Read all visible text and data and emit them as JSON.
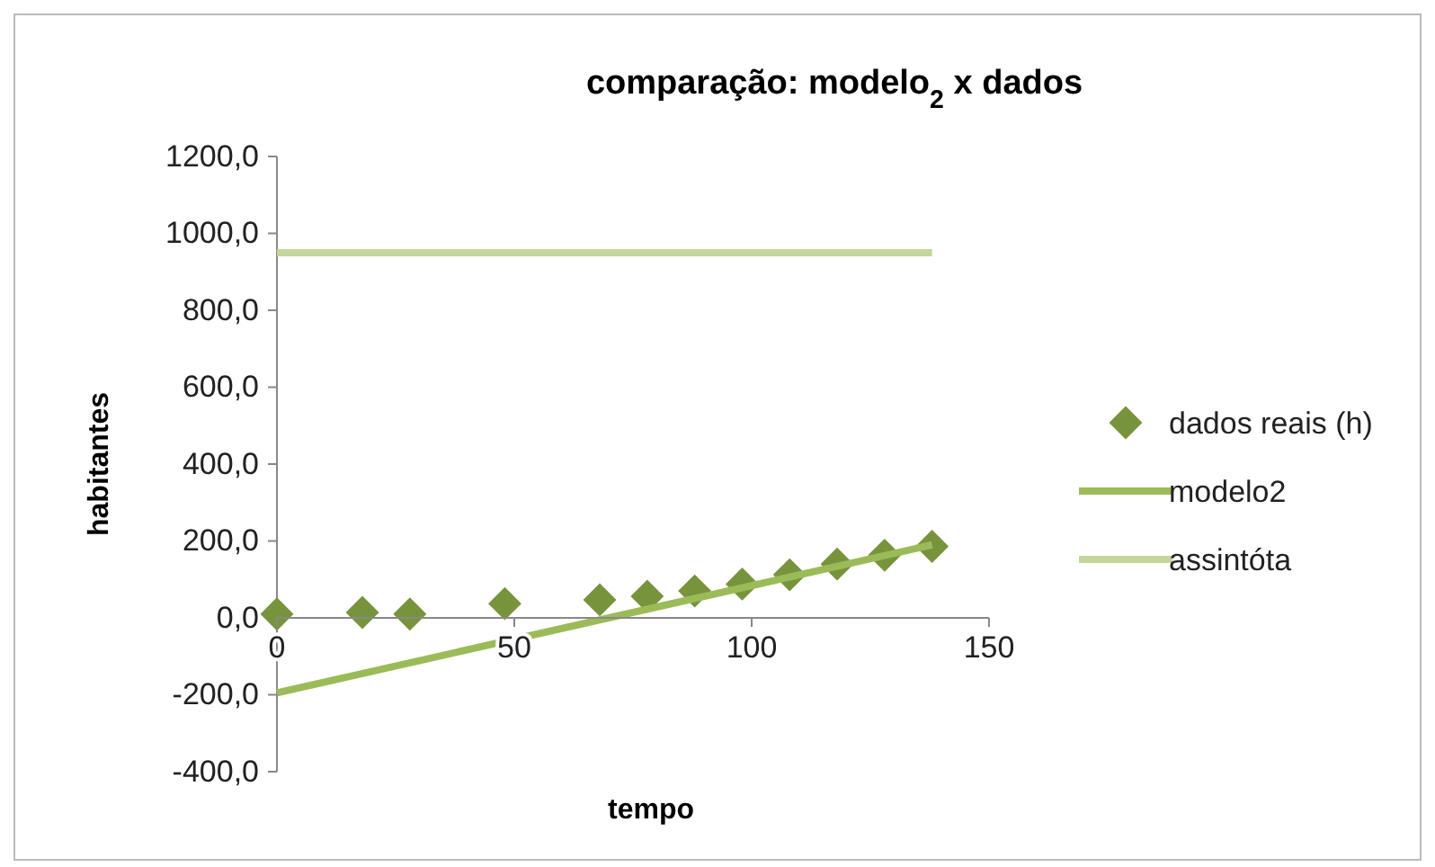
{
  "chart_data": {
    "type": "scatter",
    "title": "comparação:  modelo$_{2}$ x dados",
    "xlabel": "tempo",
    "ylabel": "habitantes",
    "xlim": [
      0,
      150
    ],
    "xticks": [
      0,
      50,
      100,
      150
    ],
    "ylim": [
      -400,
      1200
    ],
    "yticks": [
      {
        "value": -400,
        "label": "-400,0"
      },
      {
        "value": -200,
        "label": "-200,0"
      },
      {
        "value": 0,
        "label": "0,0"
      },
      {
        "value": 200,
        "label": "200,0"
      },
      {
        "value": 400,
        "label": "400,0"
      },
      {
        "value": 600,
        "label": "600,0"
      },
      {
        "value": 800,
        "label": "800,0"
      },
      {
        "value": 1000,
        "label": "1000,0"
      },
      {
        "value": 1200,
        "label": "1200,0"
      }
    ],
    "grid": false,
    "legend": "right",
    "series": [
      {
        "name": "dados reais (h)",
        "marker": "diamond",
        "color": "#77933c",
        "x": [
          0,
          18,
          28,
          48,
          68,
          78,
          88,
          98,
          108,
          118,
          128,
          138
        ],
        "values": [
          10,
          14,
          10,
          37,
          47,
          56,
          70,
          88,
          112,
          140,
          163,
          186
        ]
      },
      {
        "name": "modelo2",
        "type": "line",
        "marker": "none",
        "color": "#9bbb59",
        "x": [
          0,
          138
        ],
        "values": [
          -195,
          190
        ]
      },
      {
        "name": "assintóta",
        "type": "line",
        "marker": "none",
        "color": "#c3d69b",
        "x": [
          0,
          138
        ],
        "values": [
          950,
          950
        ]
      }
    ]
  }
}
